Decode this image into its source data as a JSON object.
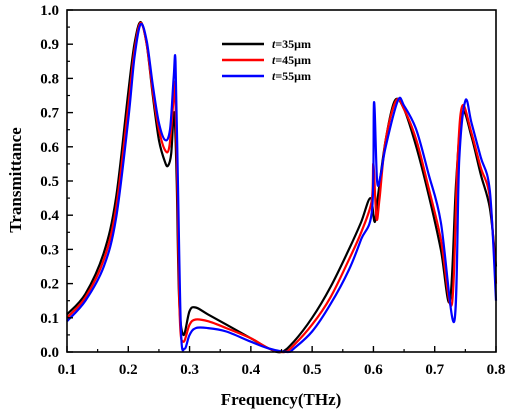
{
  "chart_data": {
    "type": "line",
    "xlabel": "Frequency(THz)",
    "ylabel": "Transmittance",
    "xlim": [
      0.1,
      0.8
    ],
    "ylim": [
      0.0,
      1.0
    ],
    "xticks": [
      "0.1",
      "0.2",
      "0.3",
      "0.4",
      "0.5",
      "0.6",
      "0.7",
      "0.8"
    ],
    "yticks": [
      "0.0",
      "0.1",
      "0.2",
      "0.3",
      "0.4",
      "0.5",
      "0.6",
      "0.7",
      "0.8",
      "0.9",
      "1.0"
    ],
    "grid": false,
    "legend_position": "top-center",
    "legend": [
      {
        "prefix": "t",
        "suffix": "=35μm",
        "color": "#000000"
      },
      {
        "prefix": "t",
        "suffix": "=45μm",
        "color": "#ff0000"
      },
      {
        "prefix": "t",
        "suffix": "=55μm",
        "color": "#0000ff"
      }
    ],
    "series": [
      {
        "color": "#000000",
        "points": [
          [
            0.1,
            0.11
          ],
          [
            0.13,
            0.17
          ],
          [
            0.16,
            0.29
          ],
          [
            0.18,
            0.45
          ],
          [
            0.2,
            0.76
          ],
          [
            0.21,
            0.9
          ],
          [
            0.22,
            0.965
          ],
          [
            0.23,
            0.9
          ],
          [
            0.24,
            0.75
          ],
          [
            0.25,
            0.62
          ],
          [
            0.26,
            0.555
          ],
          [
            0.265,
            0.545
          ],
          [
            0.27,
            0.58
          ],
          [
            0.275,
            0.7
          ],
          [
            0.279,
            0.5
          ],
          [
            0.283,
            0.15
          ],
          [
            0.29,
            0.05
          ],
          [
            0.3,
            0.12
          ],
          [
            0.31,
            0.13
          ],
          [
            0.33,
            0.11
          ],
          [
            0.36,
            0.08
          ],
          [
            0.4,
            0.04
          ],
          [
            0.43,
            0.01
          ],
          [
            0.45,
            0.0
          ],
          [
            0.47,
            0.03
          ],
          [
            0.5,
            0.1
          ],
          [
            0.53,
            0.19
          ],
          [
            0.56,
            0.3
          ],
          [
            0.58,
            0.38
          ],
          [
            0.595,
            0.45
          ],
          [
            0.602,
            0.38
          ],
          [
            0.607,
            0.45
          ],
          [
            0.62,
            0.62
          ],
          [
            0.635,
            0.735
          ],
          [
            0.65,
            0.71
          ],
          [
            0.67,
            0.6
          ],
          [
            0.69,
            0.46
          ],
          [
            0.71,
            0.3
          ],
          [
            0.725,
            0.15
          ],
          [
            0.735,
            0.5
          ],
          [
            0.745,
            0.7
          ],
          [
            0.76,
            0.63
          ],
          [
            0.775,
            0.52
          ],
          [
            0.79,
            0.42
          ],
          [
            0.8,
            0.25
          ]
        ]
      },
      {
        "color": "#ff0000",
        "points": [
          [
            0.1,
            0.1
          ],
          [
            0.13,
            0.16
          ],
          [
            0.16,
            0.27
          ],
          [
            0.18,
            0.42
          ],
          [
            0.2,
            0.72
          ],
          [
            0.21,
            0.88
          ],
          [
            0.22,
            0.962
          ],
          [
            0.23,
            0.9
          ],
          [
            0.24,
            0.76
          ],
          [
            0.25,
            0.65
          ],
          [
            0.26,
            0.59
          ],
          [
            0.267,
            0.6
          ],
          [
            0.273,
            0.72
          ],
          [
            0.276,
            0.78
          ],
          [
            0.28,
            0.5
          ],
          [
            0.284,
            0.1
          ],
          [
            0.29,
            0.03
          ],
          [
            0.3,
            0.08
          ],
          [
            0.31,
            0.095
          ],
          [
            0.33,
            0.09
          ],
          [
            0.36,
            0.07
          ],
          [
            0.4,
            0.04
          ],
          [
            0.43,
            0.01
          ],
          [
            0.455,
            0.0
          ],
          [
            0.47,
            0.02
          ],
          [
            0.5,
            0.08
          ],
          [
            0.53,
            0.16
          ],
          [
            0.56,
            0.27
          ],
          [
            0.58,
            0.35
          ],
          [
            0.597,
            0.44
          ],
          [
            0.6,
            0.55
          ],
          [
            0.605,
            0.39
          ],
          [
            0.61,
            0.45
          ],
          [
            0.62,
            0.62
          ],
          [
            0.637,
            0.735
          ],
          [
            0.65,
            0.71
          ],
          [
            0.67,
            0.62
          ],
          [
            0.69,
            0.48
          ],
          [
            0.71,
            0.33
          ],
          [
            0.728,
            0.14
          ],
          [
            0.737,
            0.55
          ],
          [
            0.745,
            0.72
          ],
          [
            0.76,
            0.64
          ],
          [
            0.775,
            0.54
          ],
          [
            0.79,
            0.45
          ],
          [
            0.8,
            0.2
          ]
        ]
      },
      {
        "color": "#0000ff",
        "points": [
          [
            0.1,
            0.09
          ],
          [
            0.13,
            0.15
          ],
          [
            0.16,
            0.25
          ],
          [
            0.18,
            0.39
          ],
          [
            0.2,
            0.68
          ],
          [
            0.21,
            0.86
          ],
          [
            0.22,
            0.958
          ],
          [
            0.23,
            0.91
          ],
          [
            0.24,
            0.78
          ],
          [
            0.25,
            0.67
          ],
          [
            0.26,
            0.62
          ],
          [
            0.268,
            0.65
          ],
          [
            0.274,
            0.8
          ],
          [
            0.277,
            0.85
          ],
          [
            0.281,
            0.5
          ],
          [
            0.286,
            0.06
          ],
          [
            0.292,
            0.01
          ],
          [
            0.3,
            0.05
          ],
          [
            0.31,
            0.07
          ],
          [
            0.33,
            0.07
          ],
          [
            0.36,
            0.06
          ],
          [
            0.4,
            0.03
          ],
          [
            0.43,
            0.01
          ],
          [
            0.46,
            0.0
          ],
          [
            0.47,
            0.01
          ],
          [
            0.5,
            0.06
          ],
          [
            0.53,
            0.14
          ],
          [
            0.56,
            0.24
          ],
          [
            0.58,
            0.33
          ],
          [
            0.598,
            0.42
          ],
          [
            0.601,
            0.73
          ],
          [
            0.606,
            0.5
          ],
          [
            0.612,
            0.52
          ],
          [
            0.62,
            0.6
          ],
          [
            0.64,
            0.735
          ],
          [
            0.65,
            0.72
          ],
          [
            0.67,
            0.65
          ],
          [
            0.69,
            0.52
          ],
          [
            0.71,
            0.38
          ],
          [
            0.732,
            0.09
          ],
          [
            0.74,
            0.56
          ],
          [
            0.75,
            0.735
          ],
          [
            0.76,
            0.67
          ],
          [
            0.775,
            0.57
          ],
          [
            0.79,
            0.47
          ],
          [
            0.8,
            0.15
          ]
        ]
      }
    ]
  }
}
